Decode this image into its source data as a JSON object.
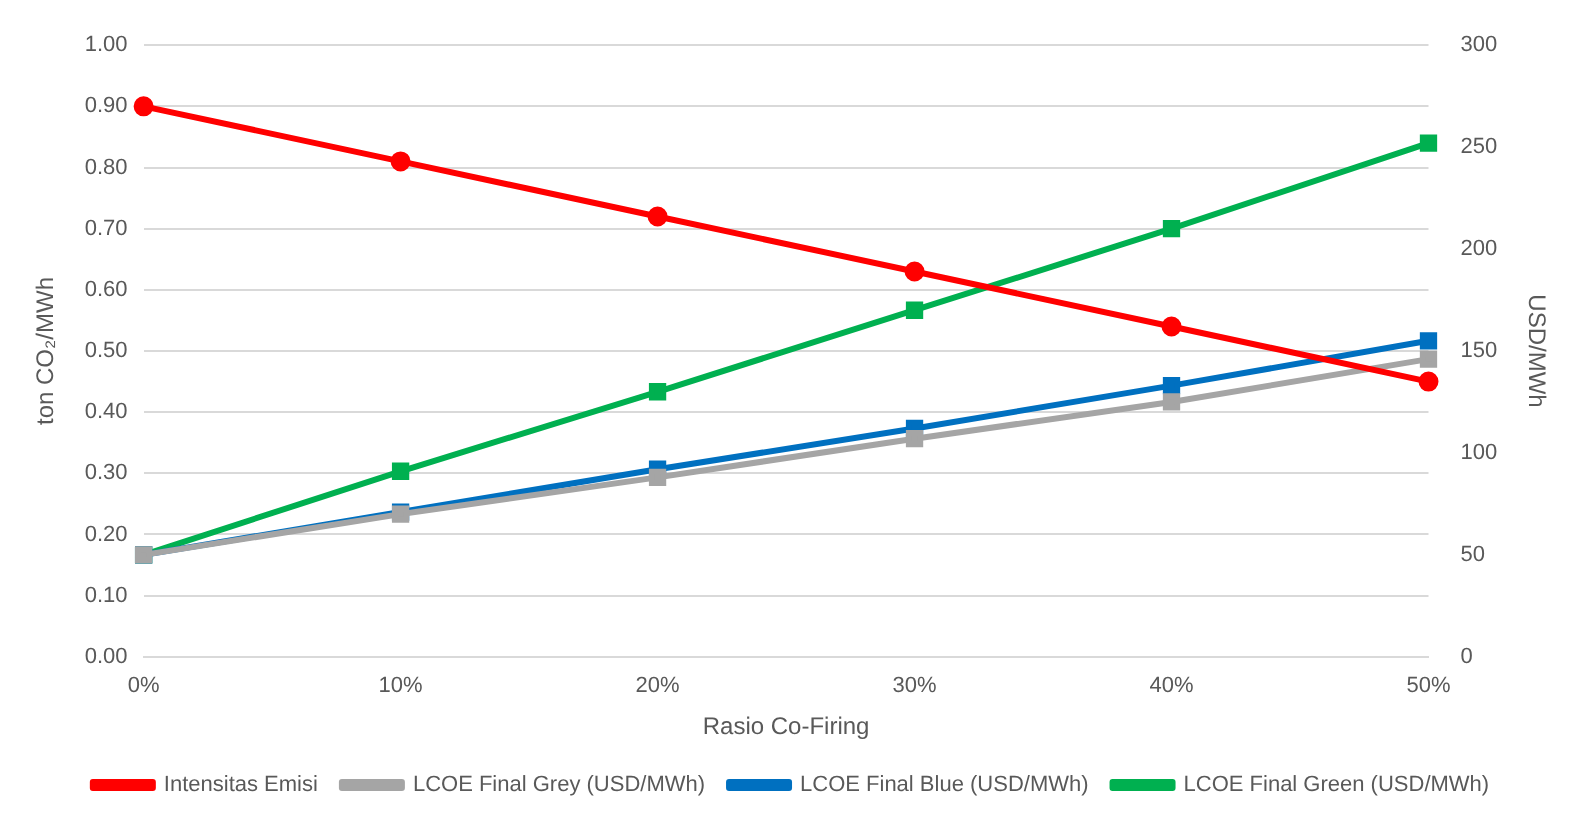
{
  "chart_data": {
    "type": "line",
    "xlabel": "Rasio Co-Firing",
    "ylabel": "ton CO₂/MWh",
    "y2label": "USD/MWh",
    "categories": [
      "0%",
      "10%",
      "20%",
      "30%",
      "40%",
      "50%"
    ],
    "series": [
      {
        "name": "Intensitas Emisi",
        "color": "#ff0000",
        "marker": "circle",
        "values": [
          0.9,
          0.81,
          0.72,
          0.63,
          0.54,
          0.45
        ]
      },
      {
        "name": "LCOE Final Grey (USD/MWh)",
        "color": "#a5a5a5",
        "marker": "square",
        "axis": "y2",
        "values": [
          50,
          70,
          88,
          107,
          125,
          146
        ]
      },
      {
        "name": "LCOE Final Blue (USD/MWh)",
        "color": "#0070c0",
        "marker": "square",
        "axis": "y2",
        "values": [
          50,
          71,
          92,
          112,
          133,
          155
        ]
      },
      {
        "name": "LCOE Final Green (USD/MWh)",
        "color": "#00b050",
        "marker": "square",
        "axis": "y2",
        "values": [
          50,
          91,
          130,
          170,
          210,
          252
        ]
      }
    ],
    "ylim": [
      0,
      1
    ],
    "yticks": [
      {
        "value": 0,
        "label": "0.00"
      },
      {
        "value": 0.1,
        "label": "0.10"
      },
      {
        "value": 0.2,
        "label": "0.20"
      },
      {
        "value": 0.3,
        "label": "0.30"
      },
      {
        "value": 0.4,
        "label": "0.40"
      },
      {
        "value": 0.5,
        "label": "0.50"
      },
      {
        "value": 0.6,
        "label": "0.60"
      },
      {
        "value": 0.7,
        "label": "0.70"
      },
      {
        "value": 0.8,
        "label": "0.80"
      },
      {
        "value": 0.9,
        "label": "0.90"
      },
      {
        "value": 1,
        "label": "1.00"
      }
    ],
    "y2lim": [
      0,
      300
    ],
    "y2ticks": [
      0,
      50,
      100,
      150,
      200,
      250,
      300
    ],
    "grid": "y",
    "legend": "bottom",
    "line_style": "solid"
  }
}
